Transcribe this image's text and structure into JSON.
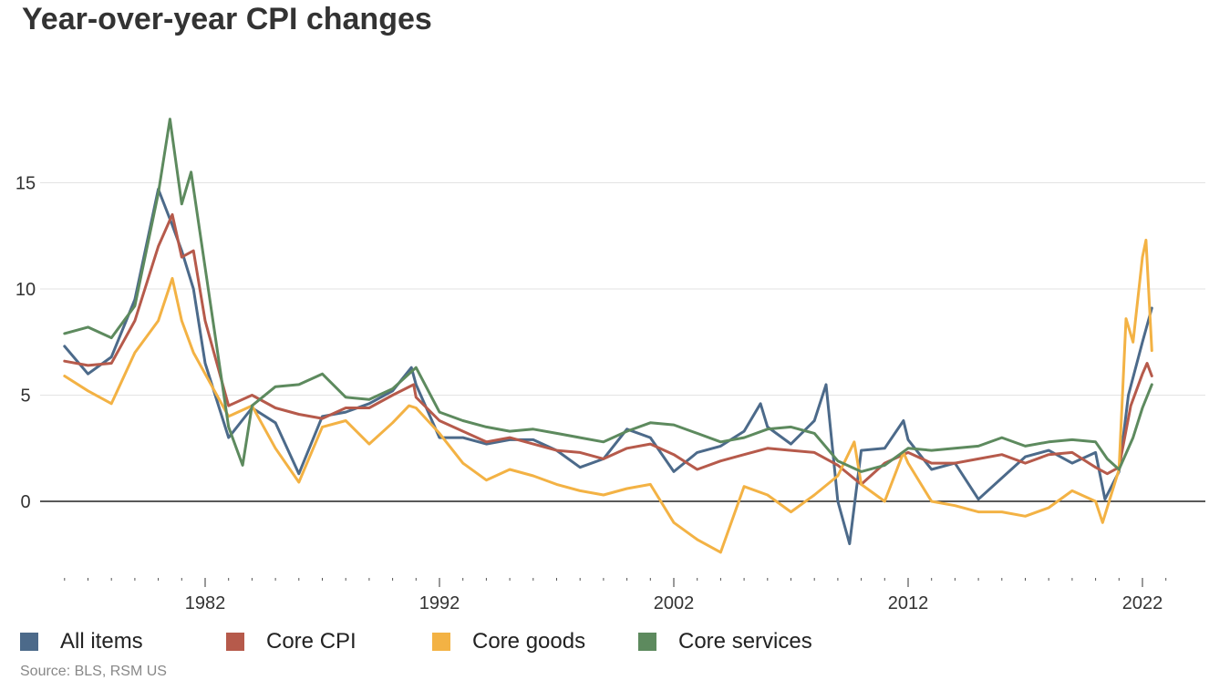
{
  "chart_data": {
    "type": "line",
    "title": "Year-over-year CPI changes",
    "xlabel": "",
    "ylabel": "",
    "x_range": [
      1976,
      2023
    ],
    "ylim": [
      -3.5,
      18.5
    ],
    "y_ticks": [
      0,
      5,
      10,
      15
    ],
    "x_ticks": [
      1982,
      1992,
      2002,
      2012,
      2022
    ],
    "grid": "horizontal",
    "legend": "bottom",
    "zero_line": true,
    "series": [
      {
        "name": "All items",
        "color": "#4c6a8a",
        "points": [
          [
            1976,
            7.3
          ],
          [
            1977,
            6.0
          ],
          [
            1978,
            6.8
          ],
          [
            1979,
            9.5
          ],
          [
            1980,
            14.7
          ],
          [
            1980.6,
            13.0
          ],
          [
            1981,
            11.8
          ],
          [
            1981.5,
            10.0
          ],
          [
            1982,
            6.5
          ],
          [
            1983,
            3.0
          ],
          [
            1984,
            4.4
          ],
          [
            1985,
            3.7
          ],
          [
            1986,
            1.3
          ],
          [
            1987,
            4.0
          ],
          [
            1988,
            4.2
          ],
          [
            1989,
            4.6
          ],
          [
            1990,
            5.2
          ],
          [
            1990.8,
            6.3
          ],
          [
            1991,
            5.5
          ],
          [
            1992,
            3.0
          ],
          [
            1993,
            3.0
          ],
          [
            1994,
            2.7
          ],
          [
            1995,
            2.9
          ],
          [
            1996,
            2.9
          ],
          [
            1997,
            2.4
          ],
          [
            1998,
            1.6
          ],
          [
            1999,
            2.0
          ],
          [
            2000,
            3.4
          ],
          [
            2001,
            3.0
          ],
          [
            2002,
            1.4
          ],
          [
            2003,
            2.3
          ],
          [
            2004,
            2.6
          ],
          [
            2005,
            3.3
          ],
          [
            2005.7,
            4.6
          ],
          [
            2006,
            3.5
          ],
          [
            2007,
            2.7
          ],
          [
            2008,
            3.8
          ],
          [
            2008.5,
            5.5
          ],
          [
            2009,
            0.0
          ],
          [
            2009.5,
            -2.0
          ],
          [
            2010,
            2.4
          ],
          [
            2011,
            2.5
          ],
          [
            2011.8,
            3.8
          ],
          [
            2012,
            2.9
          ],
          [
            2013,
            1.5
          ],
          [
            2014,
            1.8
          ],
          [
            2015,
            0.1
          ],
          [
            2016,
            1.1
          ],
          [
            2017,
            2.1
          ],
          [
            2018,
            2.4
          ],
          [
            2019,
            1.8
          ],
          [
            2020,
            2.3
          ],
          [
            2020.4,
            0.1
          ],
          [
            2021,
            1.4
          ],
          [
            2021.4,
            5.0
          ],
          [
            2022,
            7.5
          ],
          [
            2022.4,
            9.1
          ]
        ]
      },
      {
        "name": "Core CPI",
        "color": "#b65a4b",
        "points": [
          [
            1976,
            6.6
          ],
          [
            1977,
            6.4
          ],
          [
            1978,
            6.5
          ],
          [
            1979,
            8.5
          ],
          [
            1980,
            12.0
          ],
          [
            1980.6,
            13.5
          ],
          [
            1981,
            11.5
          ],
          [
            1981.5,
            11.8
          ],
          [
            1982,
            8.5
          ],
          [
            1983,
            4.5
          ],
          [
            1984,
            5.0
          ],
          [
            1985,
            4.4
          ],
          [
            1986,
            4.1
          ],
          [
            1987,
            3.9
          ],
          [
            1988,
            4.4
          ],
          [
            1989,
            4.4
          ],
          [
            1990,
            5.0
          ],
          [
            1990.9,
            5.5
          ],
          [
            1991,
            4.9
          ],
          [
            1992,
            3.8
          ],
          [
            1993,
            3.3
          ],
          [
            1994,
            2.8
          ],
          [
            1995,
            3.0
          ],
          [
            1996,
            2.7
          ],
          [
            1997,
            2.4
          ],
          [
            1998,
            2.3
          ],
          [
            1999,
            2.0
          ],
          [
            2000,
            2.5
          ],
          [
            2001,
            2.7
          ],
          [
            2002,
            2.2
          ],
          [
            2003,
            1.5
          ],
          [
            2004,
            1.9
          ],
          [
            2005,
            2.2
          ],
          [
            2006,
            2.5
          ],
          [
            2007,
            2.4
          ],
          [
            2008,
            2.3
          ],
          [
            2009,
            1.7
          ],
          [
            2010,
            0.8
          ],
          [
            2011,
            1.8
          ],
          [
            2012,
            2.3
          ],
          [
            2013,
            1.8
          ],
          [
            2014,
            1.8
          ],
          [
            2015,
            2.0
          ],
          [
            2016,
            2.2
          ],
          [
            2017,
            1.8
          ],
          [
            2018,
            2.2
          ],
          [
            2019,
            2.3
          ],
          [
            2020,
            1.6
          ],
          [
            2020.5,
            1.3
          ],
          [
            2021,
            1.6
          ],
          [
            2021.5,
            4.5
          ],
          [
            2022,
            6.0
          ],
          [
            2022.2,
            6.5
          ],
          [
            2022.4,
            5.9
          ]
        ]
      },
      {
        "name": "Core goods",
        "color": "#f3b244",
        "points": [
          [
            1976,
            5.9
          ],
          [
            1977,
            5.2
          ],
          [
            1978,
            4.6
          ],
          [
            1979,
            7.0
          ],
          [
            1980,
            8.5
          ],
          [
            1980.6,
            10.5
          ],
          [
            1981,
            8.5
          ],
          [
            1981.5,
            7.0
          ],
          [
            1982,
            6.0
          ],
          [
            1983,
            4.0
          ],
          [
            1984,
            4.5
          ],
          [
            1985,
            2.5
          ],
          [
            1986,
            0.9
          ],
          [
            1987,
            3.5
          ],
          [
            1988,
            3.8
          ],
          [
            1989,
            2.7
          ],
          [
            1990,
            3.7
          ],
          [
            1990.7,
            4.5
          ],
          [
            1991,
            4.4
          ],
          [
            1992,
            3.2
          ],
          [
            1993,
            1.8
          ],
          [
            1994,
            1.0
          ],
          [
            1995,
            1.5
          ],
          [
            1996,
            1.2
          ],
          [
            1997,
            0.8
          ],
          [
            1998,
            0.5
          ],
          [
            1999,
            0.3
          ],
          [
            2000,
            0.6
          ],
          [
            2001,
            0.8
          ],
          [
            2002,
            -1.0
          ],
          [
            2003,
            -1.8
          ],
          [
            2004,
            -2.4
          ],
          [
            2005,
            0.7
          ],
          [
            2006,
            0.3
          ],
          [
            2007,
            -0.5
          ],
          [
            2008,
            0.3
          ],
          [
            2009,
            1.2
          ],
          [
            2009.7,
            2.8
          ],
          [
            2010,
            0.8
          ],
          [
            2011,
            0.0
          ],
          [
            2011.8,
            2.3
          ],
          [
            2012,
            1.8
          ],
          [
            2013,
            0.0
          ],
          [
            2014,
            -0.2
          ],
          [
            2015,
            -0.5
          ],
          [
            2016,
            -0.5
          ],
          [
            2017,
            -0.7
          ],
          [
            2018,
            -0.3
          ],
          [
            2019,
            0.5
          ],
          [
            2020,
            0.0
          ],
          [
            2020.3,
            -1.0
          ],
          [
            2021,
            1.5
          ],
          [
            2021.3,
            8.6
          ],
          [
            2021.6,
            7.5
          ],
          [
            2022,
            11.5
          ],
          [
            2022.15,
            12.3
          ],
          [
            2022.4,
            7.1
          ]
        ]
      },
      {
        "name": "Core services",
        "color": "#5d8a5e",
        "points": [
          [
            1976,
            7.9
          ],
          [
            1977,
            8.2
          ],
          [
            1978,
            7.7
          ],
          [
            1979,
            9.2
          ],
          [
            1980,
            14.5
          ],
          [
            1980.5,
            18.0
          ],
          [
            1981,
            14.0
          ],
          [
            1981.4,
            15.5
          ],
          [
            1982,
            11.0
          ],
          [
            1983,
            3.5
          ],
          [
            1983.6,
            1.7
          ],
          [
            1984,
            4.5
          ],
          [
            1985,
            5.4
          ],
          [
            1986,
            5.5
          ],
          [
            1987,
            6.0
          ],
          [
            1988,
            4.9
          ],
          [
            1989,
            4.8
          ],
          [
            1990,
            5.3
          ],
          [
            1991,
            6.3
          ],
          [
            1992,
            4.2
          ],
          [
            1993,
            3.8
          ],
          [
            1994,
            3.5
          ],
          [
            1995,
            3.3
          ],
          [
            1996,
            3.4
          ],
          [
            1997,
            3.2
          ],
          [
            1998,
            3.0
          ],
          [
            1999,
            2.8
          ],
          [
            2000,
            3.3
          ],
          [
            2001,
            3.7
          ],
          [
            2002,
            3.6
          ],
          [
            2003,
            3.2
          ],
          [
            2004,
            2.8
          ],
          [
            2005,
            3.0
          ],
          [
            2006,
            3.4
          ],
          [
            2007,
            3.5
          ],
          [
            2008,
            3.2
          ],
          [
            2009,
            1.9
          ],
          [
            2010,
            1.4
          ],
          [
            2011,
            1.7
          ],
          [
            2012,
            2.5
          ],
          [
            2013,
            2.4
          ],
          [
            2014,
            2.5
          ],
          [
            2015,
            2.6
          ],
          [
            2016,
            3.0
          ],
          [
            2017,
            2.6
          ],
          [
            2018,
            2.8
          ],
          [
            2019,
            2.9
          ],
          [
            2020,
            2.8
          ],
          [
            2020.5,
            2.0
          ],
          [
            2021,
            1.5
          ],
          [
            2021.6,
            3.0
          ],
          [
            2022,
            4.4
          ],
          [
            2022.4,
            5.5
          ]
        ]
      }
    ]
  },
  "source_note": "Source: BLS, RSM US"
}
